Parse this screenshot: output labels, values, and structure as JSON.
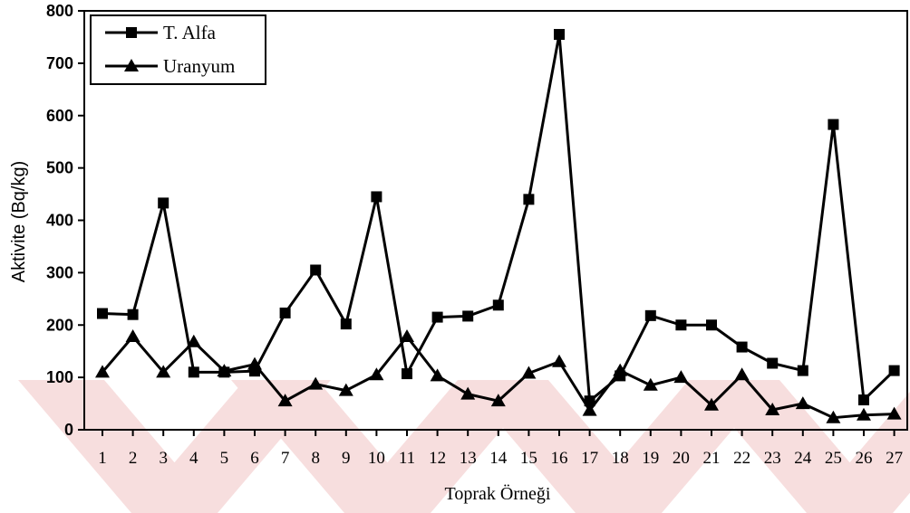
{
  "chart_data": {
    "type": "line",
    "title": "",
    "xlabel": "Toprak Örneği",
    "ylabel": "Aktivite (Bq/kg)",
    "ylim": [
      0,
      800
    ],
    "yticks": [
      "0",
      "100",
      "200",
      "300",
      "400",
      "500",
      "600",
      "700",
      "800"
    ],
    "categories": [
      "1",
      "2",
      "3",
      "4",
      "5",
      "6",
      "7",
      "8",
      "9",
      "10",
      "11",
      "12",
      "13",
      "14",
      "15",
      "16",
      "17",
      "18",
      "19",
      "20",
      "21",
      "22",
      "23",
      "24",
      "25",
      "26",
      "27"
    ],
    "series": [
      {
        "name": "T. Alfa",
        "marker": "square",
        "values": [
          222,
          220,
          433,
          110,
          110,
          112,
          223,
          305,
          202,
          445,
          107,
          215,
          217,
          238,
          440,
          755,
          55,
          103,
          218,
          200,
          200,
          158,
          127,
          113,
          583,
          57,
          113
        ]
      },
      {
        "name": "Uranyum",
        "marker": "triangle",
        "values": [
          110,
          178,
          110,
          168,
          112,
          125,
          55,
          87,
          75,
          105,
          178,
          103,
          68,
          55,
          108,
          130,
          37,
          113,
          85,
          100,
          47,
          105,
          38,
          50,
          23,
          28,
          30
        ]
      }
    ],
    "legend_position": "top-left",
    "grid": false,
    "colors": {
      "line": "#000000",
      "watermark": "#f7dede"
    }
  }
}
